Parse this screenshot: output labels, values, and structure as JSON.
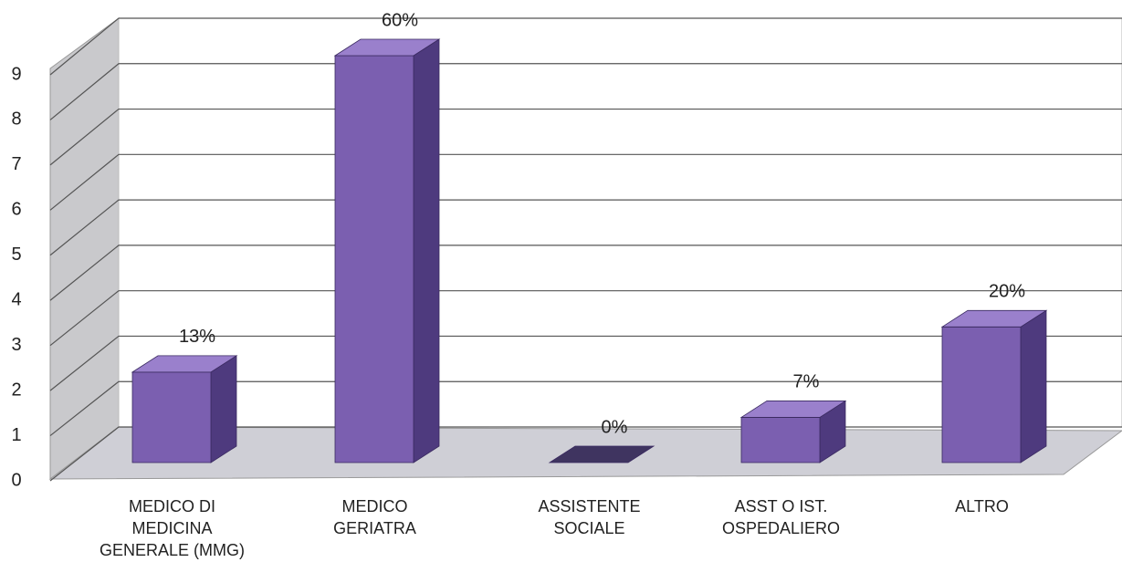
{
  "chart_data": {
    "type": "bar3d",
    "categories": [
      "MEDICO DI MEDICINA GENERALE (MMG)",
      "MEDICO GERIATRA",
      "ASSISTENTE SOCIALE",
      "ASST O IST. OSPEDALIERO",
      "ALTRO"
    ],
    "values": [
      2,
      9,
      0,
      1,
      3
    ],
    "value_labels": [
      "13%",
      "60%",
      "0%",
      "7%",
      "20%"
    ],
    "color": "#7b5fb0",
    "ylim": [
      0,
      9
    ],
    "yticks": [
      0,
      1,
      2,
      3,
      4,
      5,
      6,
      7,
      8,
      9
    ],
    "grid": true
  }
}
